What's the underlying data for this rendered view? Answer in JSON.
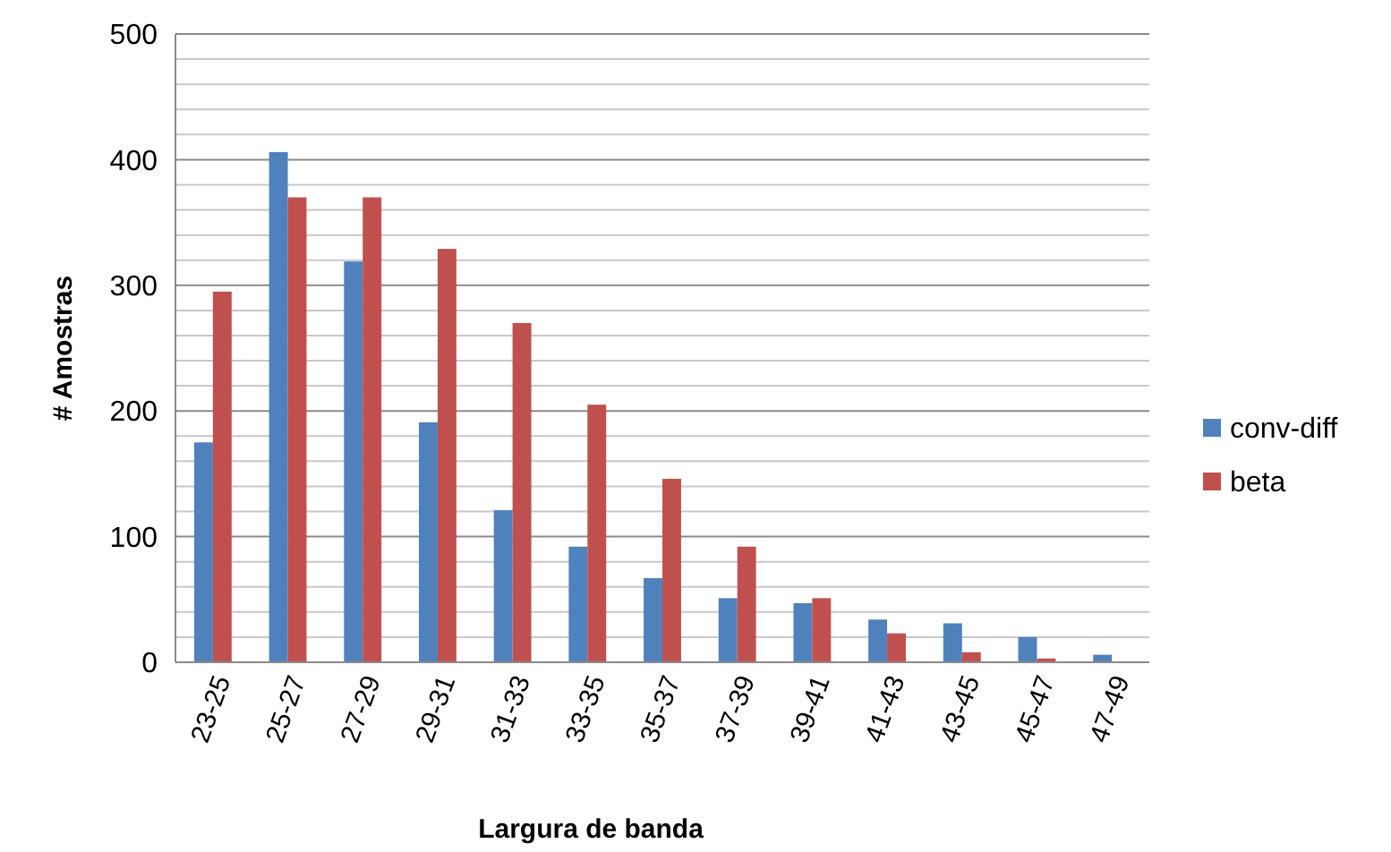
{
  "chart_data": {
    "type": "bar",
    "xlabel": "Largura de banda",
    "ylabel": "# Amostras",
    "categories": [
      "23-25",
      "25-27",
      "27-29",
      "29-31",
      "31-33",
      "33-35",
      "35-37",
      "37-39",
      "39-41",
      "41-43",
      "43-45",
      "45-47",
      "47-49"
    ],
    "series": [
      {
        "name": "conv-diff",
        "color": "#4f81bd",
        "values": [
          175,
          406,
          319,
          191,
          121,
          92,
          67,
          51,
          47,
          34,
          31,
          20,
          6
        ]
      },
      {
        "name": "beta",
        "color": "#c0504d",
        "values": [
          295,
          370,
          370,
          329,
          270,
          205,
          146,
          92,
          51,
          23,
          8,
          3,
          0
        ]
      }
    ],
    "ylim": [
      0,
      500
    ],
    "yticks": [
      0,
      100,
      200,
      300,
      400,
      500
    ],
    "grid": true,
    "legend": "right"
  }
}
